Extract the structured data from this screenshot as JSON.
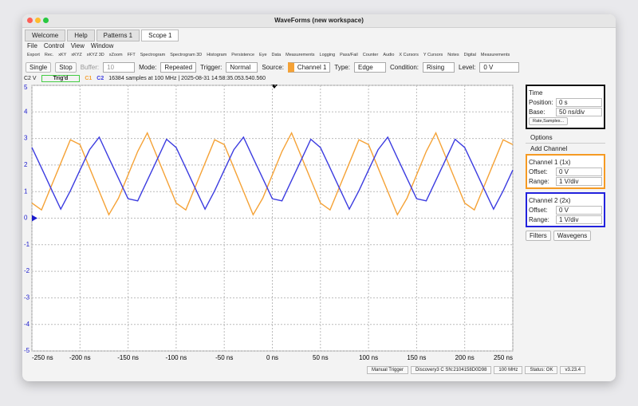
{
  "window": {
    "title": "WaveForms (new workspace)"
  },
  "tabs": [
    "Welcome",
    "Help",
    "Patterns 1",
    "Scope 1"
  ],
  "menu": [
    "File",
    "Control",
    "View",
    "Window"
  ],
  "tools": [
    "Export",
    "Rec.",
    "xKY",
    "xKYZ",
    "xKYZ 3D",
    "xZoom",
    "FFT",
    "Spectrogram",
    "Spectrogram 3D",
    "Histogram",
    "Persistence",
    "Eye",
    "Data",
    "Measurements",
    "Logging",
    "Pass/Fail",
    "Counter",
    "Audio",
    "X Cursors",
    "Y Cursors",
    "Notes",
    "Digital",
    "Measurements"
  ],
  "controls": {
    "single": "Single",
    "stop": "Stop",
    "buffer_label": "Buffer:",
    "buffer": "10",
    "mode_label": "Mode:",
    "mode": "Repeated",
    "trigger_label": "Trigger:",
    "trigger": "Normal",
    "source_label": "Source:",
    "source": "Channel 1",
    "type_label": "Type:",
    "type": "Edge",
    "condition_label": "Condition:",
    "condition": "Rising",
    "level_label": "Level:",
    "level": "0 V"
  },
  "info": {
    "unit": "C2 V",
    "status": "Trig'd",
    "text": "16384 samples at 100 MHz | 2025-08-31 14:58:35.053.540.560"
  },
  "chart_data": {
    "type": "line",
    "x": [
      -250,
      -240,
      -230,
      -220,
      -210,
      -200,
      -190,
      -180,
      -170,
      -160,
      -150,
      -140,
      -130,
      -120,
      -110,
      -100,
      -90,
      -80,
      -70,
      -60,
      -50,
      -40,
      -30,
      -20,
      -10,
      0,
      10,
      20,
      30,
      40,
      50,
      60,
      70,
      80,
      90,
      100,
      110,
      120,
      130,
      140,
      150,
      160,
      170,
      180,
      190,
      200,
      210,
      220,
      230,
      240,
      250
    ],
    "series": [
      {
        "name": "C1",
        "color": "#f5a236",
        "values": [
          0.57,
          0.31,
          1.19,
          2.07,
          2.95,
          2.77,
          1.89,
          1.01,
          0.13,
          0.75,
          1.63,
          2.51,
          3.21,
          2.33,
          1.45,
          0.57,
          0.31,
          1.19,
          2.07,
          2.95,
          2.77,
          1.89,
          1.01,
          0.13,
          0.75,
          1.63,
          2.51,
          3.21,
          2.33,
          1.45,
          0.57,
          0.31,
          1.19,
          2.07,
          2.95,
          2.77,
          1.89,
          1.01,
          0.13,
          0.75,
          1.63,
          2.51,
          3.21,
          2.33,
          1.45,
          0.57,
          0.31,
          1.19,
          2.07,
          2.95,
          2.77
        ]
      },
      {
        "name": "C2",
        "color": "#3c3ce0",
        "values": [
          2.66,
          1.89,
          1.11,
          0.34,
          1.03,
          1.81,
          2.58,
          3.05,
          2.27,
          1.5,
          0.73,
          0.65,
          1.42,
          2.19,
          2.97,
          2.66,
          1.89,
          1.11,
          0.34,
          1.03,
          1.81,
          2.58,
          3.05,
          2.27,
          1.5,
          0.73,
          0.65,
          1.42,
          2.19,
          2.97,
          2.66,
          1.89,
          1.11,
          0.34,
          1.03,
          1.81,
          2.58,
          3.05,
          2.27,
          1.5,
          0.73,
          0.65,
          1.42,
          2.19,
          2.97,
          2.66,
          1.89,
          1.11,
          0.34,
          1.03,
          1.81
        ]
      }
    ],
    "xlim": [
      -250,
      250
    ],
    "ylim": [
      -5,
      5
    ],
    "xticks": [
      {
        "value": -250,
        "label": "-250 ns"
      },
      {
        "value": -200,
        "label": "-200 ns"
      },
      {
        "value": -150,
        "label": "-150 ns"
      },
      {
        "value": -100,
        "label": "-100 ns"
      },
      {
        "value": -50,
        "label": "-50 ns"
      },
      {
        "value": 0,
        "label": "0 ns"
      },
      {
        "value": 50,
        "label": "50 ns"
      },
      {
        "value": 100,
        "label": "100 ns"
      },
      {
        "value": 150,
        "label": "150 ns"
      },
      {
        "value": 200,
        "label": "200 ns"
      },
      {
        "value": 250,
        "label": "250 ns"
      }
    ],
    "yticks": [
      -5,
      -4,
      -3,
      -2,
      -1,
      0,
      1,
      2,
      3,
      4,
      5
    ],
    "grid": true
  },
  "panel": {
    "time": {
      "title": "Time",
      "position_label": "Position:",
      "position": "0 s",
      "base_label": "Base:",
      "base": "50 ns/div",
      "button": "Rate,Samples..."
    },
    "options": "Options",
    "add_channel": "Add Channel",
    "channels": [
      {
        "title": "Channel 1 (1x)",
        "offset_label": "Offset:",
        "offset": "0 V",
        "range_label": "Range:",
        "range": "1 V/div"
      },
      {
        "title": "Channel 2 (2x)",
        "offset_label": "Offset:",
        "offset": "0 V",
        "range_label": "Range:",
        "range": "1 V/div"
      }
    ],
    "filters": "Filters",
    "wavegens": "Wavegens"
  },
  "status": {
    "manual_trigger": "Manual Trigger",
    "device": "Discovery3 C SN:2104158D0D98",
    "rate": "100 MHz",
    "status": "Status: OK",
    "version": "v3.23.4"
  }
}
